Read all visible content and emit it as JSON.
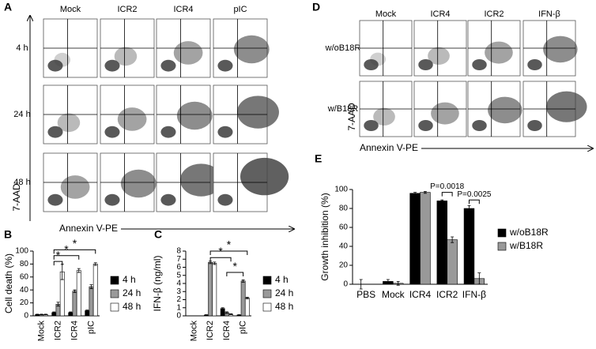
{
  "flow_panels": [
    {
      "panel": "A",
      "columns": [
        "Mock",
        "ICR2",
        "ICR4",
        "pIC"
      ],
      "rows": [
        "4 h",
        "24 h",
        "48 h"
      ],
      "ylabel": "7-AAD",
      "xlabel": "Annexin V-PE"
    },
    {
      "panel": "D",
      "columns": [
        "Mock",
        "ICR4",
        "ICR2",
        "IFN-β"
      ],
      "rows": [
        "w/oB18R",
        "w/B18R"
      ],
      "ylabel": "7-AAD",
      "xlabel": "Annexin V-PE"
    }
  ],
  "chart_data": [
    {
      "type": "bar",
      "panel": "B",
      "ylabel": "Cell death (%)",
      "categories": [
        "Mock",
        "ICR2",
        "ICR4",
        "pIC"
      ],
      "series": [
        {
          "name": "4 h",
          "color": "#000000",
          "values": [
            2,
            5,
            5,
            8
          ],
          "errors": [
            0.5,
            1,
            1,
            1
          ]
        },
        {
          "name": "24 h",
          "color": "#999999",
          "values": [
            2,
            18,
            38,
            45
          ],
          "errors": [
            0.5,
            3,
            2,
            3
          ]
        },
        {
          "name": "48 h",
          "color": "#ffffff",
          "values": [
            2,
            68,
            70,
            80
          ],
          "errors": [
            0.5,
            12,
            3,
            2
          ]
        }
      ],
      "ylim": [
        0,
        100
      ],
      "yticks": [
        0,
        20,
        40,
        60,
        80,
        100
      ],
      "annotations": [
        "*",
        "*",
        "*"
      ]
    },
    {
      "type": "bar",
      "panel": "C",
      "ylabel": "IFN-β (ng/ml)",
      "categories": [
        "Mock",
        "ICR2",
        "ICR4",
        "pIC"
      ],
      "series": [
        {
          "name": "4 h",
          "color": "#000000",
          "values": [
            0,
            0.1,
            0.9,
            0.1
          ],
          "errors": [
            0,
            0.05,
            0.1,
            0.05
          ]
        },
        {
          "name": "24 h",
          "color": "#999999",
          "values": [
            0,
            6.6,
            0.4,
            4.3
          ],
          "errors": [
            0,
            0.15,
            0.1,
            0.15
          ]
        },
        {
          "name": "48 h",
          "color": "#ffffff",
          "values": [
            0,
            6.5,
            0.2,
            2.2
          ],
          "errors": [
            0,
            0.15,
            0.05,
            0.1
          ]
        }
      ],
      "ylim": [
        0,
        8
      ],
      "yticks": [
        0,
        1,
        2,
        3,
        4,
        5,
        6,
        7,
        8
      ],
      "annotations": [
        "*",
        "*",
        "*"
      ]
    },
    {
      "type": "bar",
      "panel": "E",
      "ylabel": "Growth inhibition (%)",
      "categories": [
        "PBS",
        "Mock",
        "ICR4",
        "ICR2",
        "IFN-β"
      ],
      "series": [
        {
          "name": "w/oB18R",
          "color": "#000000",
          "values": [
            0,
            3,
            96,
            88,
            80
          ],
          "errors": [
            5,
            2,
            1,
            1,
            3
          ]
        },
        {
          "name": "w/B18R",
          "color": "#999999",
          "values": [
            0,
            1,
            97,
            47,
            6
          ],
          "errors": [
            0,
            2,
            1,
            3,
            6
          ]
        }
      ],
      "ylim": [
        0,
        100
      ],
      "yticks": [
        0,
        20,
        40,
        60,
        80,
        100
      ],
      "annotations": [
        "P=0.0018",
        "P=0.0025"
      ]
    }
  ]
}
